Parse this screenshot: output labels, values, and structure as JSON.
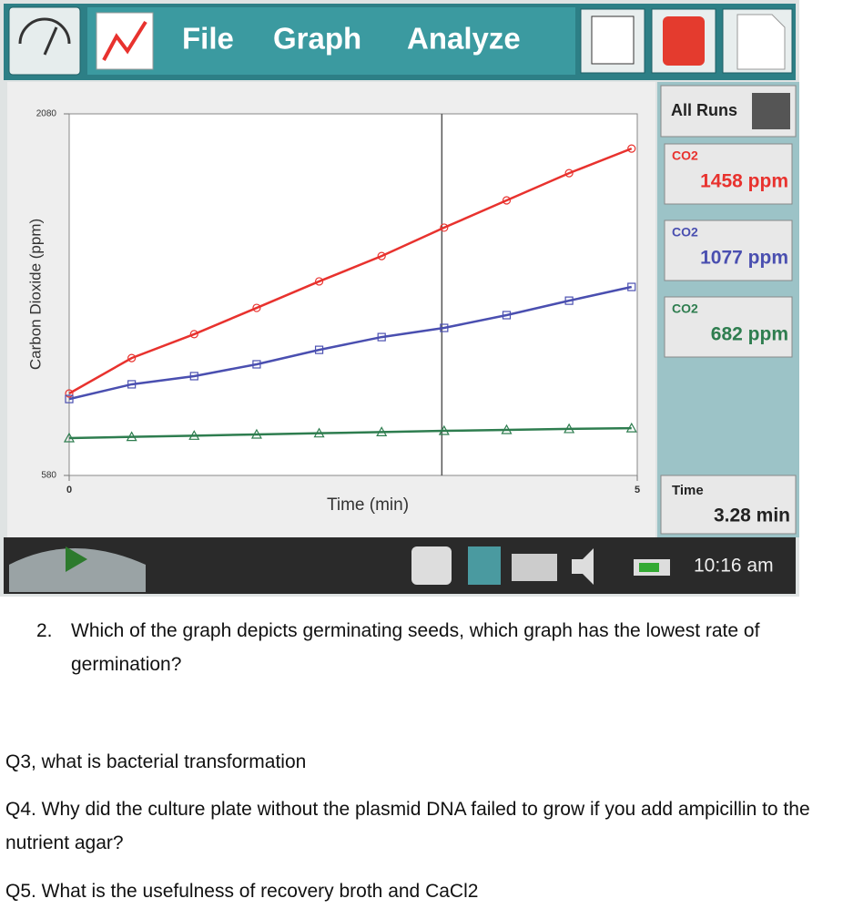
{
  "toolbar": {
    "menu": [
      "File",
      "Graph",
      "Analyze"
    ]
  },
  "chart_data": {
    "type": "line",
    "ylabel": "Carbon Dioxide (ppm)",
    "xlabel": "Time (min)",
    "xlim": [
      0,
      5
    ],
    "xticks": [
      0,
      5
    ],
    "ylim": [
      580,
      2080
    ],
    "yticks": [
      580,
      2080
    ],
    "x": [
      0,
      0.55,
      1.1,
      1.65,
      2.2,
      2.75,
      3.3,
      3.85,
      4.4,
      4.95
    ],
    "cursor": 3.28,
    "series": [
      {
        "color": "#e8322e",
        "marker": "circle",
        "values": [
          920,
          1067,
          1166,
          1275,
          1385,
          1490,
          1608,
          1721,
          1834,
          1936
        ]
      },
      {
        "color": "#4a4fb0",
        "marker": "square",
        "values": [
          897,
          958,
          992,
          1041,
          1101,
          1154,
          1192,
          1245,
          1305,
          1362
        ]
      },
      {
        "color": "#2e7d4f",
        "marker": "triangle",
        "values": [
          735,
          740,
          745,
          750,
          755,
          760,
          765,
          769,
          773,
          776
        ]
      }
    ]
  },
  "meters": {
    "all_runs": "All Runs",
    "readings": [
      {
        "label": "CO2",
        "value": "1458 ppm"
      },
      {
        "label": "CO2",
        "value": "1077 ppm"
      },
      {
        "label": "CO2",
        "value": "682 ppm"
      }
    ],
    "time": {
      "label": "Time",
      "value": "3.28 min"
    }
  },
  "status": {
    "clock": "10:16 am"
  },
  "document": {
    "q2": {
      "number": "2.",
      "text": "Which of the graph depicts germinating seeds, which graph has the lowest rate of germination?"
    },
    "q3": "Q3, what is bacterial transformation",
    "q4": "Q4. Why did the culture plate without the plasmid DNA failed to grow if you add ampicillin to the nutrient agar?",
    "q5": "Q5. What is the usefulness of recovery broth and CaCl2"
  }
}
